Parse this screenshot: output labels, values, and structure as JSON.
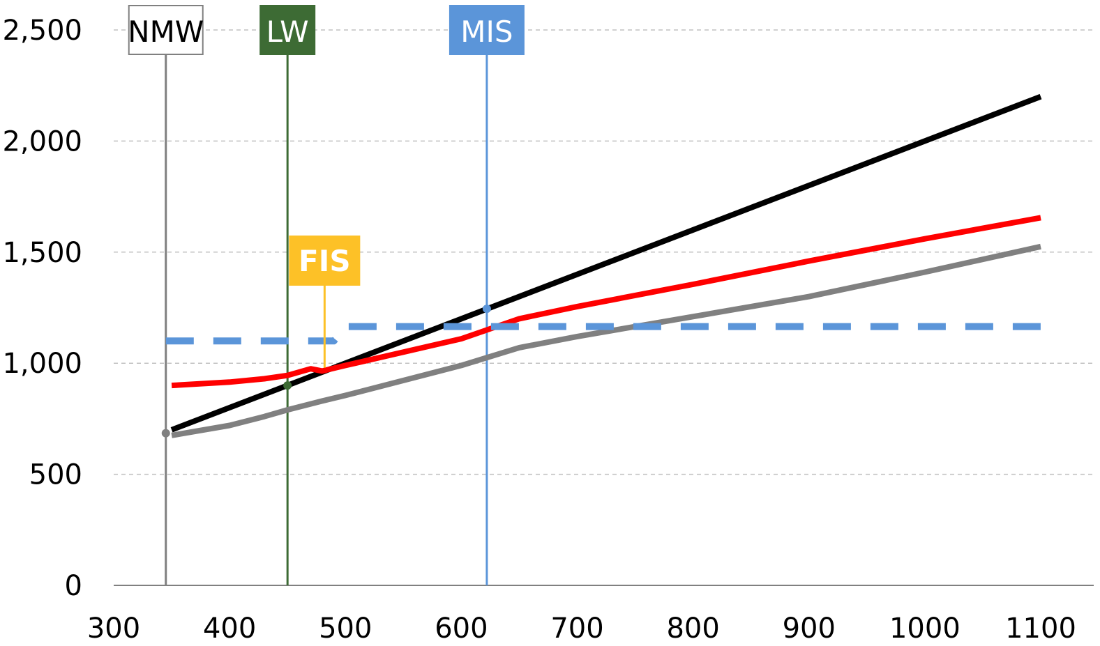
{
  "chart_data": {
    "type": "line",
    "title": "",
    "xlabel": "",
    "ylabel": "",
    "xlim": [
      300,
      1100
    ],
    "ylim": [
      0,
      2500
    ],
    "x_ticks": [
      "300",
      "400",
      "500",
      "600",
      "700",
      "800",
      "900",
      "1000",
      "1100"
    ],
    "y_ticks": [
      "0",
      "500",
      "1,000",
      "1,500",
      "2,000",
      "2,500"
    ],
    "grid": true,
    "legend": "none",
    "series": [
      {
        "color": "#000000",
        "dashed": false,
        "points": [
          [
            350,
            700
          ],
          [
            1100,
            2200
          ]
        ]
      },
      {
        "color": "#ff0000",
        "dashed": false,
        "points": [
          [
            350,
            900
          ],
          [
            400,
            915
          ],
          [
            430,
            930
          ],
          [
            450,
            945
          ],
          [
            470,
            975
          ],
          [
            480,
            965
          ],
          [
            500,
            990
          ],
          [
            600,
            1110
          ],
          [
            650,
            1200
          ],
          [
            700,
            1255
          ],
          [
            800,
            1355
          ],
          [
            900,
            1460
          ],
          [
            1000,
            1560
          ],
          [
            1100,
            1655
          ]
        ]
      },
      {
        "color": "#808080",
        "dashed": false,
        "points": [
          [
            350,
            675
          ],
          [
            400,
            720
          ],
          [
            430,
            760
          ],
          [
            450,
            790
          ],
          [
            480,
            830
          ],
          [
            500,
            855
          ],
          [
            600,
            990
          ],
          [
            650,
            1070
          ],
          [
            700,
            1120
          ],
          [
            800,
            1210
          ],
          [
            900,
            1300
          ],
          [
            1000,
            1410
          ],
          [
            1100,
            1525
          ]
        ]
      },
      {
        "color": "#5b95d9",
        "dashed": true,
        "points": [
          [
            345,
            1100
          ],
          [
            490,
            1100
          ],
          [
            500,
            1165
          ],
          [
            1100,
            1165
          ]
        ]
      }
    ],
    "markers": [
      {
        "label": "NMW",
        "x": 345,
        "y": 685,
        "line_color": "#808080",
        "box_fill": "#ffffff",
        "text_color": "#000000",
        "box_stroke": "#808080",
        "bold": false
      },
      {
        "label": "LW",
        "x": 450,
        "y": 900,
        "line_color": "#3d6b34",
        "box_fill": "#3d6b34",
        "text_color": "#ffffff",
        "box_stroke": "#3d6b34",
        "bold": false
      },
      {
        "label": "MIS",
        "x": 622,
        "y": 1245,
        "line_color": "#5b95d9",
        "box_fill": "#5b95d9",
        "text_color": "#ffffff",
        "box_stroke": "#5b95d9",
        "bold": false
      }
    ],
    "callouts": [
      {
        "label": "FIS",
        "x": 482,
        "y_top": 1465,
        "y_bottom": 980,
        "color": "#fdc127",
        "text_color": "#ffffff",
        "bold": true
      }
    ]
  }
}
